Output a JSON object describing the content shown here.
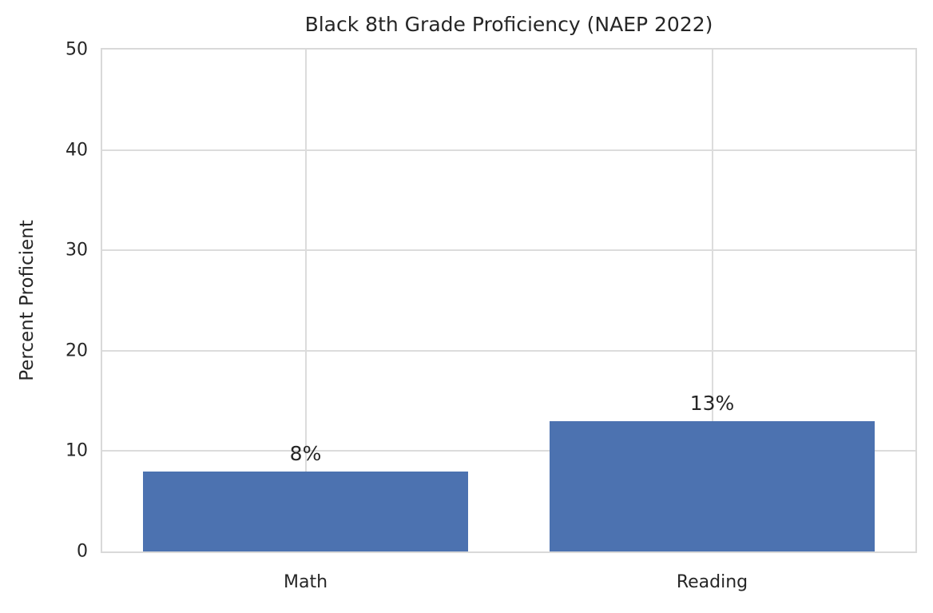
{
  "chart_data": {
    "type": "bar",
    "title": "Black 8th Grade Proficiency (NAEP 2022)",
    "categories": [
      "Math",
      "Reading"
    ],
    "values": [
      8,
      13
    ],
    "bar_labels": [
      "8%",
      "13%"
    ],
    "xlabel": "",
    "ylabel": "Percent Proficient",
    "ylim": [
      0,
      50
    ],
    "yticks": [
      0,
      10,
      20,
      30,
      40,
      50
    ],
    "grid": true,
    "legend": false,
    "bar_color": "#4c72b0",
    "grid_color": "#dcdcdc",
    "spine_color": "#d9d9d9",
    "text_color": "#262626",
    "background_color": "#ffffff"
  }
}
